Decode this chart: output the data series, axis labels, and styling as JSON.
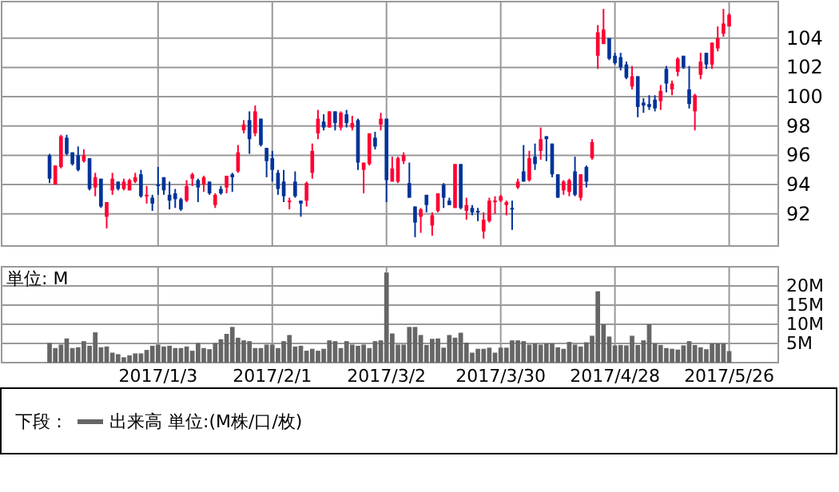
{
  "chart_data": [
    {
      "type": "candlestick",
      "categories": [
        null,
        null,
        null,
        null,
        null,
        null,
        null,
        null,
        null,
        null,
        null,
        null,
        null,
        null,
        null,
        null,
        null,
        null,
        null,
        "2017/1/3",
        null,
        null,
        null,
        null,
        null,
        null,
        null,
        null,
        null,
        null,
        null,
        null,
        null,
        null,
        null,
        null,
        null,
        null,
        null,
        "2017/2/1",
        null,
        null,
        null,
        null,
        null,
        null,
        null,
        null,
        null,
        null,
        null,
        null,
        null,
        null,
        null,
        null,
        null,
        null,
        null,
        "2017/3/2",
        null,
        null,
        null,
        null,
        null,
        null,
        null,
        null,
        null,
        null,
        null,
        null,
        null,
        null,
        null,
        null,
        null,
        null,
        null,
        "2017/3/30",
        null,
        null,
        null,
        null,
        null,
        null,
        null,
        null,
        null,
        null,
        null,
        null,
        null,
        null,
        null,
        null,
        null,
        null,
        null,
        "2017/4/28",
        null,
        null,
        null,
        null,
        null,
        null,
        null,
        null,
        null,
        null,
        null,
        null,
        null,
        null,
        null,
        null,
        null,
        null,
        null,
        "2017/5/26"
      ],
      "ohlc": [
        [
          96.0,
          96.1,
          94.1,
          94.4
        ],
        [
          94.0,
          95.3,
          94.0,
          95.3
        ],
        [
          95.2,
          97.4,
          95.1,
          97.3
        ],
        [
          97.2,
          97.4,
          96.0,
          96.1
        ],
        [
          96.2,
          96.2,
          95.3,
          95.4
        ],
        [
          96.0,
          96.6,
          94.9,
          95.0
        ],
        [
          95.6,
          96.4,
          95.5,
          96.0
        ],
        [
          95.8,
          95.8,
          93.6,
          93.7
        ],
        [
          93.8,
          94.8,
          93.2,
          94.5
        ],
        [
          94.4,
          94.4,
          92.4,
          92.5
        ],
        [
          91.8,
          92.8,
          91.0,
          92.8
        ],
        [
          93.6,
          94.8,
          93.3,
          94.4
        ],
        [
          94.2,
          94.2,
          93.6,
          93.7
        ],
        [
          93.7,
          94.4,
          93.6,
          94.2
        ],
        [
          93.6,
          94.4,
          93.6,
          94.3
        ],
        [
          94.2,
          94.8,
          94.1,
          94.5
        ],
        [
          94.7,
          95.0,
          93.1,
          93.2
        ],
        [
          93.2,
          93.9,
          92.7,
          93.3
        ],
        [
          93.1,
          93.3,
          92.2,
          92.7
        ],
        [
          94.0,
          95.2,
          93.3,
          93.9
        ],
        [
          94.5,
          94.5,
          93.3,
          93.6
        ],
        [
          93.3,
          94.2,
          92.3,
          92.9
        ],
        [
          93.4,
          93.7,
          92.4,
          93.0
        ],
        [
          93.0,
          93.1,
          92.2,
          92.3
        ],
        [
          92.9,
          94.3,
          92.8,
          93.9
        ],
        [
          94.4,
          94.8,
          93.9,
          94.7
        ],
        [
          94.3,
          94.4,
          92.8,
          93.8
        ],
        [
          94.0,
          94.6,
          93.5,
          94.5
        ],
        [
          94.2,
          94.2,
          93.3,
          93.4
        ],
        [
          92.6,
          93.4,
          92.4,
          93.3
        ],
        [
          93.7,
          93.9,
          93.3,
          93.4
        ],
        [
          93.8,
          94.6,
          93.4,
          94.6
        ],
        [
          94.7,
          94.8,
          93.5,
          94.5
        ],
        [
          94.9,
          96.7,
          94.8,
          96.2
        ],
        [
          97.7,
          98.4,
          97.5,
          98.1
        ],
        [
          98.4,
          99.0,
          96.1,
          97.1
        ],
        [
          97.5,
          99.4,
          97.3,
          99.0
        ],
        [
          98.5,
          98.5,
          96.6,
          96.7
        ],
        [
          96.5,
          96.5,
          94.5,
          95.6
        ],
        [
          95.8,
          96.3,
          94.2,
          95.0
        ],
        [
          94.8,
          95.0,
          93.3,
          93.7
        ],
        [
          94.2,
          95.0,
          92.8,
          93.2
        ],
        [
          92.8,
          93.1,
          92.3,
          92.9
        ],
        [
          94.2,
          94.9,
          93.1,
          93.2
        ],
        [
          92.9,
          92.9,
          91.8,
          92.7
        ],
        [
          92.9,
          94.2,
          92.5,
          94.1
        ],
        [
          94.8,
          96.8,
          94.4,
          96.3
        ],
        [
          97.5,
          99.1,
          97.1,
          98.5
        ],
        [
          98.3,
          98.8,
          97.7,
          97.9
        ],
        [
          97.9,
          99.0,
          97.9,
          99.0
        ],
        [
          99.0,
          99.0,
          97.7,
          98.2
        ],
        [
          97.9,
          99.0,
          97.7,
          98.9
        ],
        [
          98.8,
          99.1,
          97.9,
          98.2
        ],
        [
          97.9,
          98.7,
          97.7,
          98.2
        ],
        [
          98.4,
          98.5,
          95.0,
          95.5
        ],
        [
          95.0,
          95.5,
          93.4,
          95.5
        ],
        [
          95.4,
          97.5,
          95.3,
          97.5
        ],
        [
          97.2,
          97.6,
          96.4,
          96.6
        ],
        [
          98.1,
          98.9,
          97.7,
          98.5
        ],
        [
          98.5,
          98.5,
          92.8,
          94.3
        ],
        [
          94.2,
          95.9,
          94.2,
          95.1
        ],
        [
          94.2,
          95.9,
          94.1,
          95.8
        ],
        [
          95.6,
          96.2,
          95.4,
          96.0
        ],
        [
          94.1,
          95.5,
          93.1,
          93.1
        ],
        [
          92.5,
          92.5,
          90.4,
          91.4
        ],
        [
          91.8,
          92.4,
          90.7,
          92.3
        ],
        [
          93.3,
          93.3,
          92.1,
          92.6
        ],
        [
          91.2,
          92.1,
          90.5,
          91.9
        ],
        [
          92.2,
          93.4,
          92.1,
          93.4
        ],
        [
          94.0,
          94.1,
          92.4,
          93.1
        ],
        [
          92.9,
          93.1,
          92.6,
          92.6
        ],
        [
          92.4,
          95.4,
          92.4,
          95.4
        ],
        [
          95.4,
          95.4,
          92.3,
          92.4
        ],
        [
          92.2,
          93.1,
          91.6,
          92.6
        ],
        [
          92.4,
          92.6,
          91.9,
          92.1
        ],
        [
          92.2,
          92.4,
          91.5,
          92.1
        ],
        [
          90.8,
          92.1,
          90.3,
          91.6
        ],
        [
          91.5,
          93.1,
          91.4,
          92.9
        ],
        [
          92.8,
          93.2,
          92.0,
          92.9
        ],
        [
          92.9,
          93.3,
          92.8,
          93.2
        ],
        [
          92.6,
          92.9,
          91.9,
          92.8
        ],
        [
          92.4,
          92.9,
          90.9,
          92.3
        ],
        [
          93.8,
          94.4,
          93.7,
          94.2
        ],
        [
          94.9,
          96.7,
          94.2,
          94.2
        ],
        [
          94.3,
          96.3,
          94.2,
          95.8
        ],
        [
          95.9,
          96.8,
          95.0,
          95.4
        ],
        [
          96.3,
          97.9,
          95.7,
          97.1
        ],
        [
          97.3,
          97.3,
          95.6,
          97.1
        ],
        [
          96.8,
          96.8,
          94.5,
          94.7
        ],
        [
          94.7,
          94.7,
          93.1,
          93.1
        ],
        [
          93.6,
          94.3,
          93.3,
          94.2
        ],
        [
          93.5,
          94.4,
          93.2,
          94.3
        ],
        [
          94.9,
          95.9,
          93.2,
          93.3
        ],
        [
          93.1,
          94.7,
          92.9,
          94.7
        ],
        [
          95.2,
          95.3,
          93.8,
          94.2
        ],
        [
          95.8,
          97.1,
          95.7,
          96.9
        ],
        [
          102.8,
          104.9,
          101.9,
          104.4
        ],
        [
          103.6,
          106.0,
          103.6,
          104.6
        ],
        [
          104.0,
          104.0,
          102.5,
          102.6
        ],
        [
          102.8,
          103.0,
          102.2,
          102.3
        ],
        [
          102.7,
          103.0,
          101.8,
          102.0
        ],
        [
          102.2,
          102.4,
          101.2,
          101.3
        ],
        [
          100.7,
          102.1,
          100.5,
          101.4
        ],
        [
          101.4,
          101.4,
          98.6,
          99.3
        ],
        [
          99.6,
          99.9,
          98.9,
          99.4
        ],
        [
          99.5,
          100.1,
          99.1,
          99.3
        ],
        [
          99.8,
          100.1,
          99.0,
          99.2
        ],
        [
          99.7,
          100.8,
          99.1,
          100.4
        ],
        [
          101.9,
          102.1,
          100.3,
          100.9
        ],
        [
          100.5,
          101.1,
          100.1,
          100.9
        ],
        [
          101.7,
          102.7,
          101.4,
          102.6
        ],
        [
          102.8,
          102.8,
          101.9,
          102.0
        ],
        [
          100.5,
          102.1,
          99.2,
          99.5
        ],
        [
          99.0,
          100.2,
          97.7,
          100.1
        ],
        [
          101.5,
          103.0,
          101.2,
          102.4
        ],
        [
          103.0,
          103.0,
          101.9,
          102.2
        ],
        [
          102.2,
          103.7,
          101.9,
          103.7
        ],
        [
          103.3,
          104.8,
          103.1,
          104.0
        ],
        [
          104.3,
          106.0,
          104.1,
          105.0
        ],
        [
          104.8,
          105.7,
          104.8,
          105.6
        ]
      ],
      "colors": [
        "#003399",
        "#ff0033",
        "#ff0033",
        "#003399",
        "#003399",
        "#003399",
        "#ff0033",
        "#003399",
        "#ff0033",
        "#003399",
        "#ff0033",
        "#ff0033",
        "#003399",
        "#ff0033",
        "#ff0033",
        "#ff0033",
        "#003399",
        "#ff0033",
        "#003399",
        "#003399",
        "#003399",
        "#003399",
        "#003399",
        "#003399",
        "#ff0033",
        "#ff0033",
        "#003399",
        "#ff0033",
        "#003399",
        "#ff0033",
        "#003399",
        "#ff0033",
        "#003399",
        "#ff0033",
        "#ff0033",
        "#003399",
        "#ff0033",
        "#003399",
        "#003399",
        "#003399",
        "#003399",
        "#003399",
        "#ff0033",
        "#003399",
        "#003399",
        "#ff0033",
        "#ff0033",
        "#ff0033",
        "#003399",
        "#ff0033",
        "#003399",
        "#ff0033",
        "#003399",
        "#ff0033",
        "#003399",
        "#ff0033",
        "#ff0033",
        "#003399",
        "#ff0033",
        "#003399",
        "#ff0033",
        "#ff0033",
        "#ff0033",
        "#003399",
        "#003399",
        "#ff0033",
        "#003399",
        "#ff0033",
        "#ff0033",
        "#003399",
        "#003399",
        "#ff0033",
        "#003399",
        "#ff0033",
        "#003399",
        "#003399",
        "#ff0033",
        "#ff0033",
        "#ff0033",
        "#ff0033",
        "#ff0033",
        "#003399",
        "#ff0033",
        "#003399",
        "#ff0033",
        "#003399",
        "#ff0033",
        "#003399",
        "#003399",
        "#003399",
        "#ff0033",
        "#ff0033",
        "#003399",
        "#ff0033",
        "#003399",
        "#ff0033",
        "#ff0033",
        "#ff0033",
        "#003399",
        "#003399",
        "#003399",
        "#003399",
        "#ff0033",
        "#003399",
        "#003399",
        "#003399",
        "#003399",
        "#ff0033",
        "#003399",
        "#ff0033",
        "#ff0033",
        "#003399",
        "#003399",
        "#ff0033",
        "#ff0033",
        "#003399",
        "#ff0033",
        "#ff0033",
        "#ff0033",
        "#ff0033"
      ],
      "ylim": [
        89.8,
        106.5
      ],
      "yticks": [
        92,
        94,
        96,
        98,
        100,
        102,
        104
      ],
      "grid": true,
      "tick_labels": "y"
    },
    {
      "type": "bar",
      "categories": [
        null,
        null,
        null,
        null,
        null,
        null,
        null,
        null,
        null,
        null,
        null,
        null,
        null,
        null,
        null,
        null,
        null,
        null,
        null,
        "2017/1/3",
        null,
        null,
        null,
        null,
        null,
        null,
        null,
        null,
        null,
        null,
        null,
        null,
        null,
        null,
        null,
        null,
        null,
        null,
        null,
        "2017/2/1",
        null,
        null,
        null,
        null,
        null,
        null,
        null,
        null,
        null,
        null,
        null,
        null,
        null,
        null,
        null,
        null,
        null,
        null,
        null,
        "2017/3/2",
        null,
        null,
        null,
        null,
        null,
        null,
        null,
        null,
        null,
        null,
        null,
        null,
        null,
        null,
        null,
        null,
        null,
        null,
        null,
        "2017/3/30",
        null,
        null,
        null,
        null,
        null,
        null,
        null,
        null,
        null,
        null,
        null,
        null,
        null,
        null,
        null,
        null,
        null,
        null,
        null,
        "2017/4/28",
        null,
        null,
        null,
        null,
        null,
        null,
        null,
        null,
        null,
        null,
        null,
        null,
        null,
        null,
        null,
        null,
        null,
        null,
        null,
        "2017/5/26"
      ],
      "series": [
        {
          "name": "出来高 単位:(M株/口/枚)",
          "color": "#666666",
          "values": [
            5.1,
            3.8,
            4.7,
            6.3,
            3.8,
            4.0,
            5.6,
            4.4,
            7.9,
            4.0,
            4.2,
            2.6,
            2.2,
            1.4,
            1.9,
            2.4,
            2.4,
            3.3,
            4.4,
            4.7,
            4.2,
            4.4,
            3.8,
            3.8,
            4.2,
            3.1,
            5.1,
            3.8,
            3.5,
            5.1,
            6.1,
            7.5,
            9.3,
            6.5,
            5.8,
            5.6,
            3.8,
            3.8,
            4.7,
            4.7,
            3.8,
            5.6,
            7.2,
            4.2,
            4.4,
            3.1,
            3.6,
            3.1,
            3.6,
            5.8,
            5.6,
            3.8,
            5.6,
            4.7,
            4.4,
            4.7,
            3.8,
            5.6,
            5.8,
            23.5,
            7.6,
            4.7,
            4.7,
            9.3,
            9.3,
            7.2,
            4.6,
            6.2,
            6.3,
            3.9,
            7.2,
            6.5,
            7.8,
            5.2,
            2.6,
            3.6,
            3.6,
            3.9,
            2.6,
            3.9,
            3.9,
            5.8,
            5.8,
            5.6,
            4.7,
            5.0,
            4.7,
            5.0,
            5.0,
            4.0,
            3.6,
            5.4,
            4.7,
            4.2,
            5.3,
            7.0,
            18.6,
            10.0,
            6.8,
            4.5,
            4.6,
            4.5,
            7.0,
            4.6,
            5.8,
            10.0,
            5.0,
            4.6,
            3.8,
            3.6,
            3.4,
            4.5,
            5.6,
            4.6,
            4.0,
            3.5,
            5.0,
            5.0,
            5.0,
            3.0
          ]
        }
      ],
      "ylim": [
        0,
        25
      ],
      "yticks": [
        {
          "value": 5,
          "label": "5M"
        },
        {
          "value": 10,
          "label": "10M"
        },
        {
          "value": 15,
          "label": "15M"
        },
        {
          "value": 20,
          "label": "20M"
        }
      ],
      "grid": true,
      "legend": "bottom",
      "legend_title": "下段：",
      "annotations": [
        "単位: M"
      ]
    }
  ]
}
